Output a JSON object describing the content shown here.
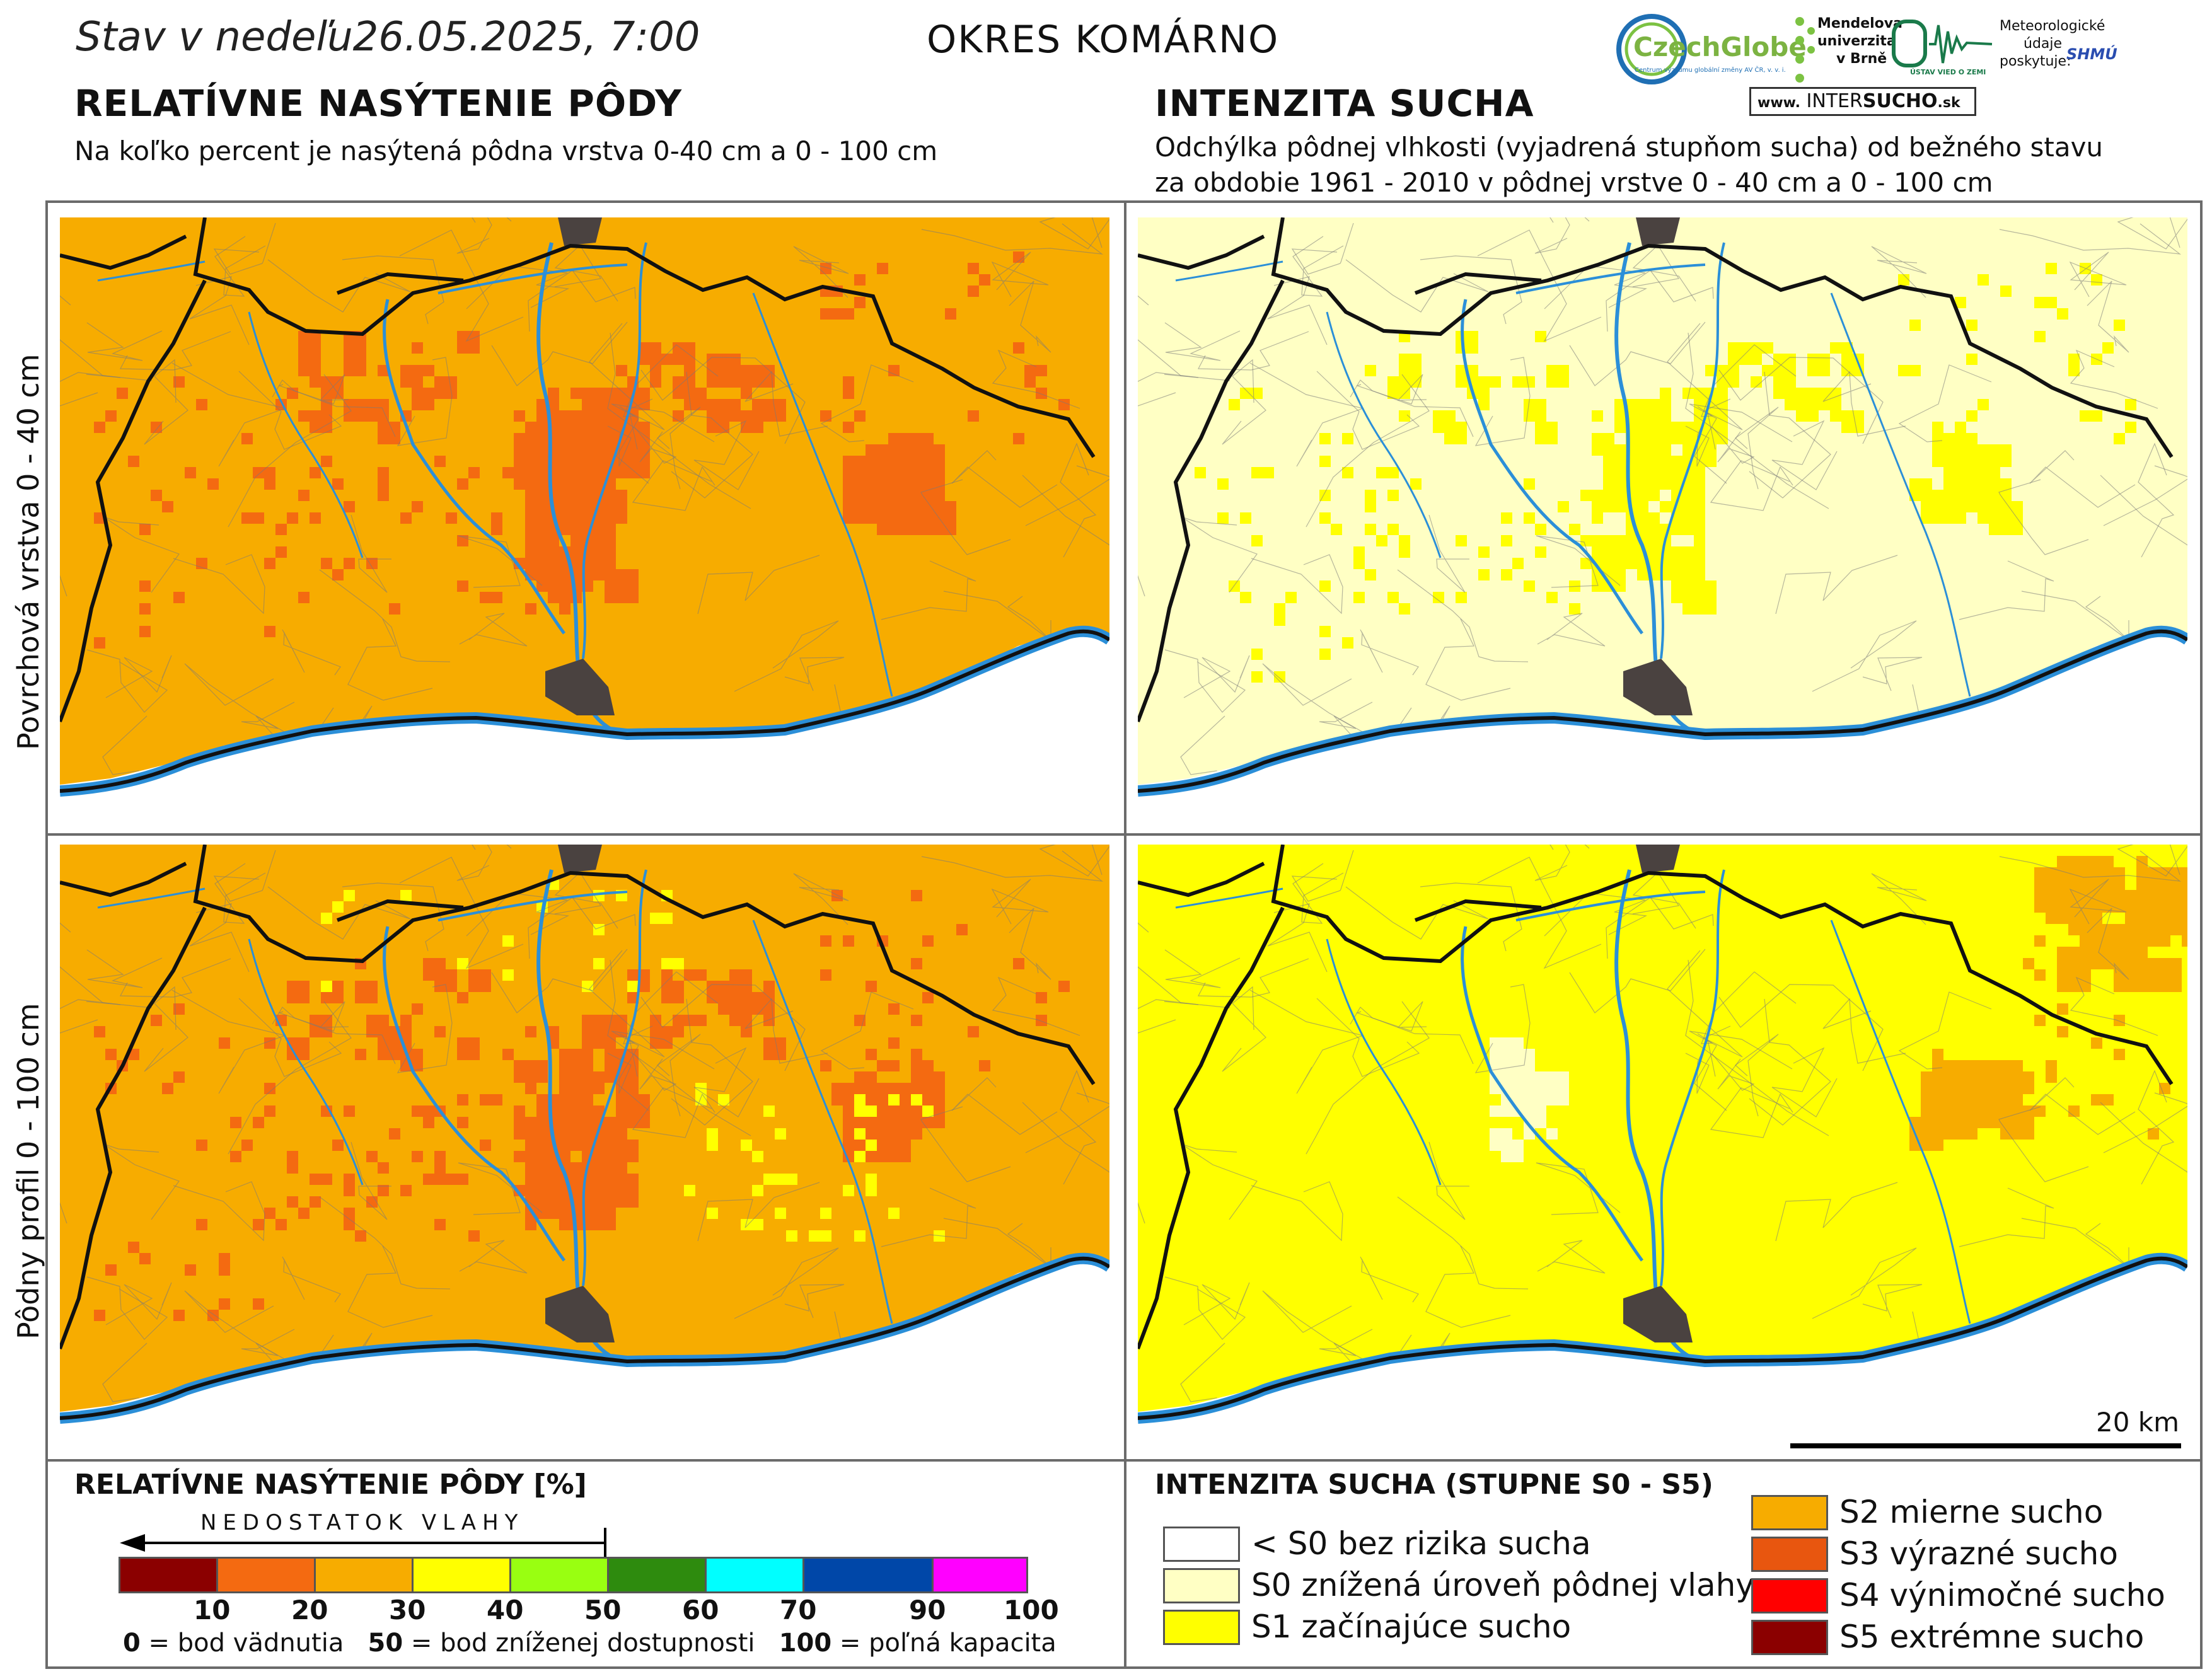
{
  "header": {
    "date_label": "Stav v nedeľu26.05.2025, 7:00",
    "district": "OKRES  KOMÁRNO",
    "left_title": "RELATÍVNE NASÝTENIE PÔDY",
    "left_subtitle": "Na koľko percent je nasýtená pôdna vrstva 0-40 cm a 0 - 100 cm",
    "right_title": "INTENZITA SUCHA",
    "right_subtitle_1": "Odchýlka pôdnej vlhkosti (vyjadrená stupňom sucha) od bežného stavu",
    "right_subtitle_2": "za obdobie 1961 - 2010 v pôdnej vrstve 0 - 40 cm a 0 - 100 cm"
  },
  "logos": {
    "czechglobe": "CzechGlobe",
    "czechglobe_sub": "Centrum výzkumu globální změny AV ČR, v. v. i.",
    "mendel_1": "Mendelova",
    "mendel_2": "univerzita",
    "mendel_3": "v Brně",
    "uvz": "ÚSTAV VIED O ZEMI",
    "meteo_1": "Meteorologické",
    "meteo_2": "údaje",
    "meteo_3": "poskytuje:",
    "shmu": "SHMÚ",
    "intersucho_www": "www.",
    "intersucho_a": "INTER",
    "intersucho_b": "SUCHO",
    "intersucho_c": ".sk"
  },
  "rows": {
    "top": "Povrchová vrstva 0 - 40 cm",
    "bottom": "Pôdny profil 0 - 100 cm"
  },
  "scalebar": "20 km",
  "colors": {
    "orange": "#f7ac00",
    "darkorange": "#f46a11",
    "lightyellow": "#ffffc4",
    "yellow": "#ffff00",
    "river": "#2b8fd8",
    "town": "#4a4240",
    "border": "#111111"
  },
  "legend_left": {
    "title": "RELATÍVNE NASÝTENIE PÔDY [%]",
    "arrow_label": "NEDOSTATOK VLAHY",
    "bins": [
      {
        "color": "#8b0000"
      },
      {
        "color": "#f46a11"
      },
      {
        "color": "#f7ac00"
      },
      {
        "color": "#ffff00"
      },
      {
        "color": "#99ff11"
      },
      {
        "color": "#2e8b0e"
      },
      {
        "color": "#00ffff"
      },
      {
        "color": "#0047a8"
      },
      {
        "color": "#ff00ff"
      }
    ],
    "ticks": [
      "10",
      "20",
      "30",
      "40",
      "50",
      "60",
      "70",
      "90",
      "100"
    ],
    "note_0": "0",
    "note_0_text": " = bod vädnutia",
    "note_50": "50",
    "note_50_text": " = bod zníženej dostupnosti",
    "note_100": "100",
    "note_100_text": " = poľná kapacita"
  },
  "legend_right": {
    "title": "INTENZITA SUCHA (STUPNE S0 - S5)",
    "items": [
      {
        "label": "< S0 bez rizika sucha",
        "color": "#ffffff"
      },
      {
        "label": "S0 znížená úroveň pôdnej vlahy",
        "color": "#ffffc4"
      },
      {
        "label": "S1 začínajúce sucho",
        "color": "#ffff00"
      },
      {
        "label": "S2 mierne sucho",
        "color": "#f7ac00"
      },
      {
        "label": "S3 výrazné sucho",
        "color": "#e8560f"
      },
      {
        "label": "S4 výnimočné sucho",
        "color": "#ff0000"
      },
      {
        "label": "S5 extrémne sucho",
        "color": "#8b0000"
      }
    ]
  }
}
